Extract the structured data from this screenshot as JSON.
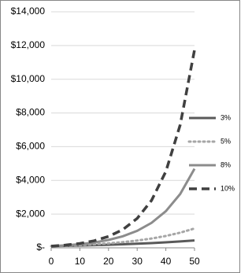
{
  "chart_data": {
    "type": "line",
    "x": [
      0,
      5,
      10,
      15,
      20,
      25,
      30,
      35,
      40,
      45,
      50
    ],
    "series": [
      {
        "name": "3%",
        "color": "#595959",
        "dash": "solid",
        "values": [
          100,
          116,
          134,
          156,
          181,
          210,
          243,
          282,
          326,
          378,
          438
        ]
      },
      {
        "name": "5%",
        "color": "#a6a6a6",
        "dash": "dotted",
        "values": [
          100,
          128,
          163,
          208,
          265,
          339,
          432,
          552,
          704,
          899,
          1147
        ]
      },
      {
        "name": "8%",
        "color": "#8c8c8c",
        "dash": "solid",
        "values": [
          100,
          147,
          216,
          317,
          466,
          685,
          1006,
          1479,
          2172,
          3192,
          4690
        ]
      },
      {
        "name": "10%",
        "color": "#404040",
        "dash": "dashed",
        "values": [
          100,
          161,
          259,
          418,
          673,
          1083,
          1745,
          2810,
          4526,
          7289,
          11739
        ]
      }
    ],
    "xlim": [
      0,
      50
    ],
    "xticks": [
      0,
      10,
      20,
      30,
      40,
      50
    ],
    "ylim": [
      0,
      14000
    ],
    "yticks": [
      {
        "value": 0,
        "label": "$-"
      },
      {
        "value": 2000,
        "label": "$2,000"
      },
      {
        "value": 4000,
        "label": "$4,000"
      },
      {
        "value": 6000,
        "label": "$6,000"
      },
      {
        "value": 8000,
        "label": "$8,000"
      },
      {
        "value": 10000,
        "label": "$10,000"
      },
      {
        "value": 12000,
        "label": "$12,000"
      },
      {
        "value": 14000,
        "label": "$14,000"
      }
    ],
    "grid": true,
    "legend": "right"
  }
}
